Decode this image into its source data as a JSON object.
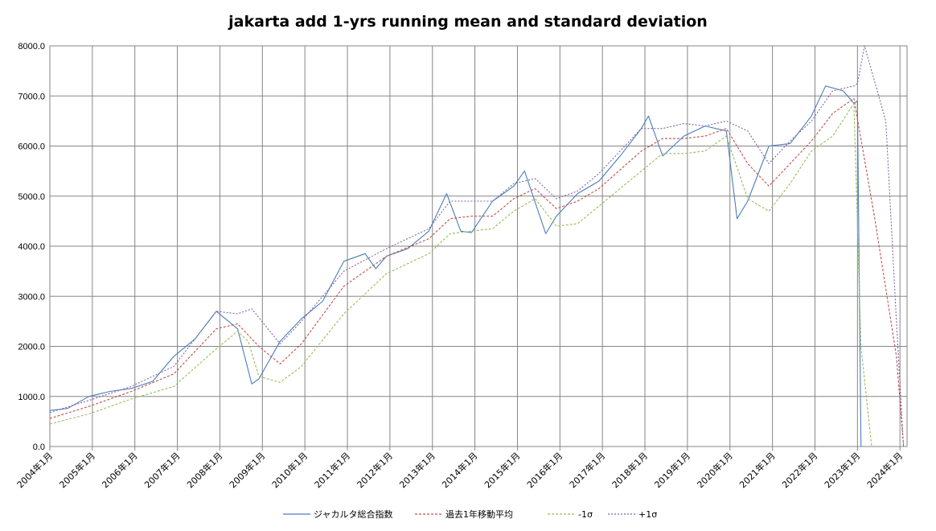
{
  "chart_data": {
    "type": "line",
    "title": "jakarta add 1-yrs running mean and standard deviation",
    "xlabel": "",
    "ylabel": "",
    "ylim": [
      0,
      8000
    ],
    "xlim": [
      "2004-01",
      "2024-03"
    ],
    "yticks": [
      "0.0",
      "1000.0",
      "2000.0",
      "3000.0",
      "4000.0",
      "5000.0",
      "6000.0",
      "7000.0",
      "8000.0"
    ],
    "xticks": [
      "2004年1月",
      "2005年1月",
      "2006年1月",
      "2007年1月",
      "2008年1月",
      "2009年1月",
      "2010年1月",
      "2011年1月",
      "2012年1月",
      "2013年1月",
      "2014年1月",
      "2015年1月",
      "2016年1月",
      "2017年1月",
      "2018年1月",
      "2019年1月",
      "2020年1月",
      "2021年1月",
      "2022年1月",
      "2023年1月",
      "2024年1月"
    ],
    "grid": true,
    "legend_position": "bottom",
    "series": [
      {
        "name": "ジャカルタ総合指数",
        "color": "#4a7ebb",
        "style": "solid",
        "points": [
          [
            "2004-01",
            720
          ],
          [
            "2004-06",
            760
          ],
          [
            "2004-12",
            1000
          ],
          [
            "2005-06",
            1100
          ],
          [
            "2005-12",
            1160
          ],
          [
            "2006-06",
            1300
          ],
          [
            "2006-12",
            1800
          ],
          [
            "2007-06",
            2150
          ],
          [
            "2007-12",
            2700
          ],
          [
            "2008-06",
            2350
          ],
          [
            "2008-10",
            1250
          ],
          [
            "2008-12",
            1350
          ],
          [
            "2009-06",
            2100
          ],
          [
            "2009-12",
            2550
          ],
          [
            "2010-06",
            2900
          ],
          [
            "2010-12",
            3700
          ],
          [
            "2011-06",
            3850
          ],
          [
            "2011-09",
            3550
          ],
          [
            "2011-12",
            3800
          ],
          [
            "2012-06",
            3950
          ],
          [
            "2012-12",
            4300
          ],
          [
            "2013-05",
            5050
          ],
          [
            "2013-09",
            4300
          ],
          [
            "2013-12",
            4270
          ],
          [
            "2014-06",
            4900
          ],
          [
            "2014-12",
            5200
          ],
          [
            "2015-03",
            5500
          ],
          [
            "2015-09",
            4250
          ],
          [
            "2015-12",
            4600
          ],
          [
            "2016-06",
            5050
          ],
          [
            "2016-12",
            5300
          ],
          [
            "2017-06",
            5800
          ],
          [
            "2017-12",
            6350
          ],
          [
            "2018-02",
            6600
          ],
          [
            "2018-06",
            5800
          ],
          [
            "2018-12",
            6200
          ],
          [
            "2019-06",
            6400
          ],
          [
            "2019-12",
            6300
          ],
          [
            "2020-03",
            4550
          ],
          [
            "2020-06",
            4900
          ],
          [
            "2020-12",
            6000
          ],
          [
            "2021-06",
            6050
          ],
          [
            "2021-12",
            6600
          ],
          [
            "2022-04",
            7200
          ],
          [
            "2022-09",
            7100
          ],
          [
            "2022-12",
            6850
          ],
          [
            "2023-01",
            6900
          ],
          [
            "2023-02",
            0
          ]
        ]
      },
      {
        "name": "過去1年移動平均",
        "color": "#c0504d",
        "style": "dashed",
        "points": [
          [
            "2004-01",
            560
          ],
          [
            "2004-12",
            800
          ],
          [
            "2005-12",
            1100
          ],
          [
            "2006-12",
            1450
          ],
          [
            "2007-12",
            2350
          ],
          [
            "2008-06",
            2450
          ],
          [
            "2008-12",
            2000
          ],
          [
            "2009-06",
            1650
          ],
          [
            "2009-12",
            2050
          ],
          [
            "2010-12",
            3200
          ],
          [
            "2011-12",
            3800
          ],
          [
            "2012-12",
            4150
          ],
          [
            "2013-06",
            4550
          ],
          [
            "2013-12",
            4600
          ],
          [
            "2014-06",
            4600
          ],
          [
            "2014-12",
            4950
          ],
          [
            "2015-06",
            5150
          ],
          [
            "2015-12",
            4750
          ],
          [
            "2016-06",
            4900
          ],
          [
            "2016-12",
            5150
          ],
          [
            "2017-12",
            5900
          ],
          [
            "2018-06",
            6150
          ],
          [
            "2018-12",
            6150
          ],
          [
            "2019-06",
            6200
          ],
          [
            "2019-12",
            6350
          ],
          [
            "2020-06",
            5650
          ],
          [
            "2020-12",
            5200
          ],
          [
            "2021-06",
            5650
          ],
          [
            "2021-12",
            6100
          ],
          [
            "2022-06",
            6650
          ],
          [
            "2022-12",
            6950
          ],
          [
            "2023-06",
            4500
          ],
          [
            "2023-12",
            1800
          ],
          [
            "2024-02",
            0
          ]
        ]
      },
      {
        "name": "-1σ",
        "color": "#9bbb59",
        "style": "dashed",
        "points": [
          [
            "2004-01",
            450
          ],
          [
            "2004-12",
            650
          ],
          [
            "2005-12",
            950
          ],
          [
            "2006-12",
            1200
          ],
          [
            "2007-12",
            1950
          ],
          [
            "2008-06",
            2300
          ],
          [
            "2008-09",
            2100
          ],
          [
            "2008-12",
            1400
          ],
          [
            "2009-06",
            1280
          ],
          [
            "2009-12",
            1600
          ],
          [
            "2010-12",
            2650
          ],
          [
            "2011-12",
            3450
          ],
          [
            "2012-12",
            3850
          ],
          [
            "2013-06",
            4250
          ],
          [
            "2013-12",
            4300
          ],
          [
            "2014-06",
            4350
          ],
          [
            "2014-12",
            4700
          ],
          [
            "2015-06",
            4950
          ],
          [
            "2015-12",
            4400
          ],
          [
            "2016-06",
            4450
          ],
          [
            "2016-12",
            4800
          ],
          [
            "2017-12",
            5500
          ],
          [
            "2018-06",
            5850
          ],
          [
            "2018-12",
            5850
          ],
          [
            "2019-06",
            5900
          ],
          [
            "2019-12",
            6200
          ],
          [
            "2020-06",
            4950
          ],
          [
            "2020-12",
            4700
          ],
          [
            "2021-06",
            5250
          ],
          [
            "2021-12",
            5900
          ],
          [
            "2022-06",
            6200
          ],
          [
            "2022-12",
            6850
          ],
          [
            "2023-02",
            2000
          ],
          [
            "2023-05",
            0
          ]
        ]
      },
      {
        "name": "+1σ",
        "color": "#8064a2",
        "style": "dashed",
        "points": [
          [
            "2004-01",
            680
          ],
          [
            "2004-12",
            920
          ],
          [
            "2005-12",
            1200
          ],
          [
            "2006-12",
            1600
          ],
          [
            "2007-12",
            2700
          ],
          [
            "2008-06",
            2650
          ],
          [
            "2008-10",
            2750
          ],
          [
            "2009-06",
            2050
          ],
          [
            "2009-12",
            2500
          ],
          [
            "2010-12",
            3500
          ],
          [
            "2011-12",
            3950
          ],
          [
            "2012-12",
            4350
          ],
          [
            "2013-06",
            4900
          ],
          [
            "2013-12",
            4900
          ],
          [
            "2014-06",
            4900
          ],
          [
            "2014-12",
            5250
          ],
          [
            "2015-06",
            5350
          ],
          [
            "2015-12",
            4950
          ],
          [
            "2016-06",
            5100
          ],
          [
            "2016-12",
            5450
          ],
          [
            "2017-12",
            6350
          ],
          [
            "2018-06",
            6350
          ],
          [
            "2018-12",
            6450
          ],
          [
            "2019-06",
            6400
          ],
          [
            "2019-12",
            6500
          ],
          [
            "2020-06",
            6300
          ],
          [
            "2020-12",
            5650
          ],
          [
            "2021-06",
            6100
          ],
          [
            "2021-12",
            6500
          ],
          [
            "2022-06",
            7100
          ],
          [
            "2022-12",
            7200
          ],
          [
            "2023-01",
            7250
          ],
          [
            "2023-03",
            8000
          ],
          [
            "2023-09",
            6500
          ],
          [
            "2023-12",
            2500
          ],
          [
            "2024-02",
            0
          ]
        ]
      }
    ]
  },
  "colors": {
    "background": "#ffffff",
    "gridline": "#868686",
    "axis": "#868686"
  }
}
